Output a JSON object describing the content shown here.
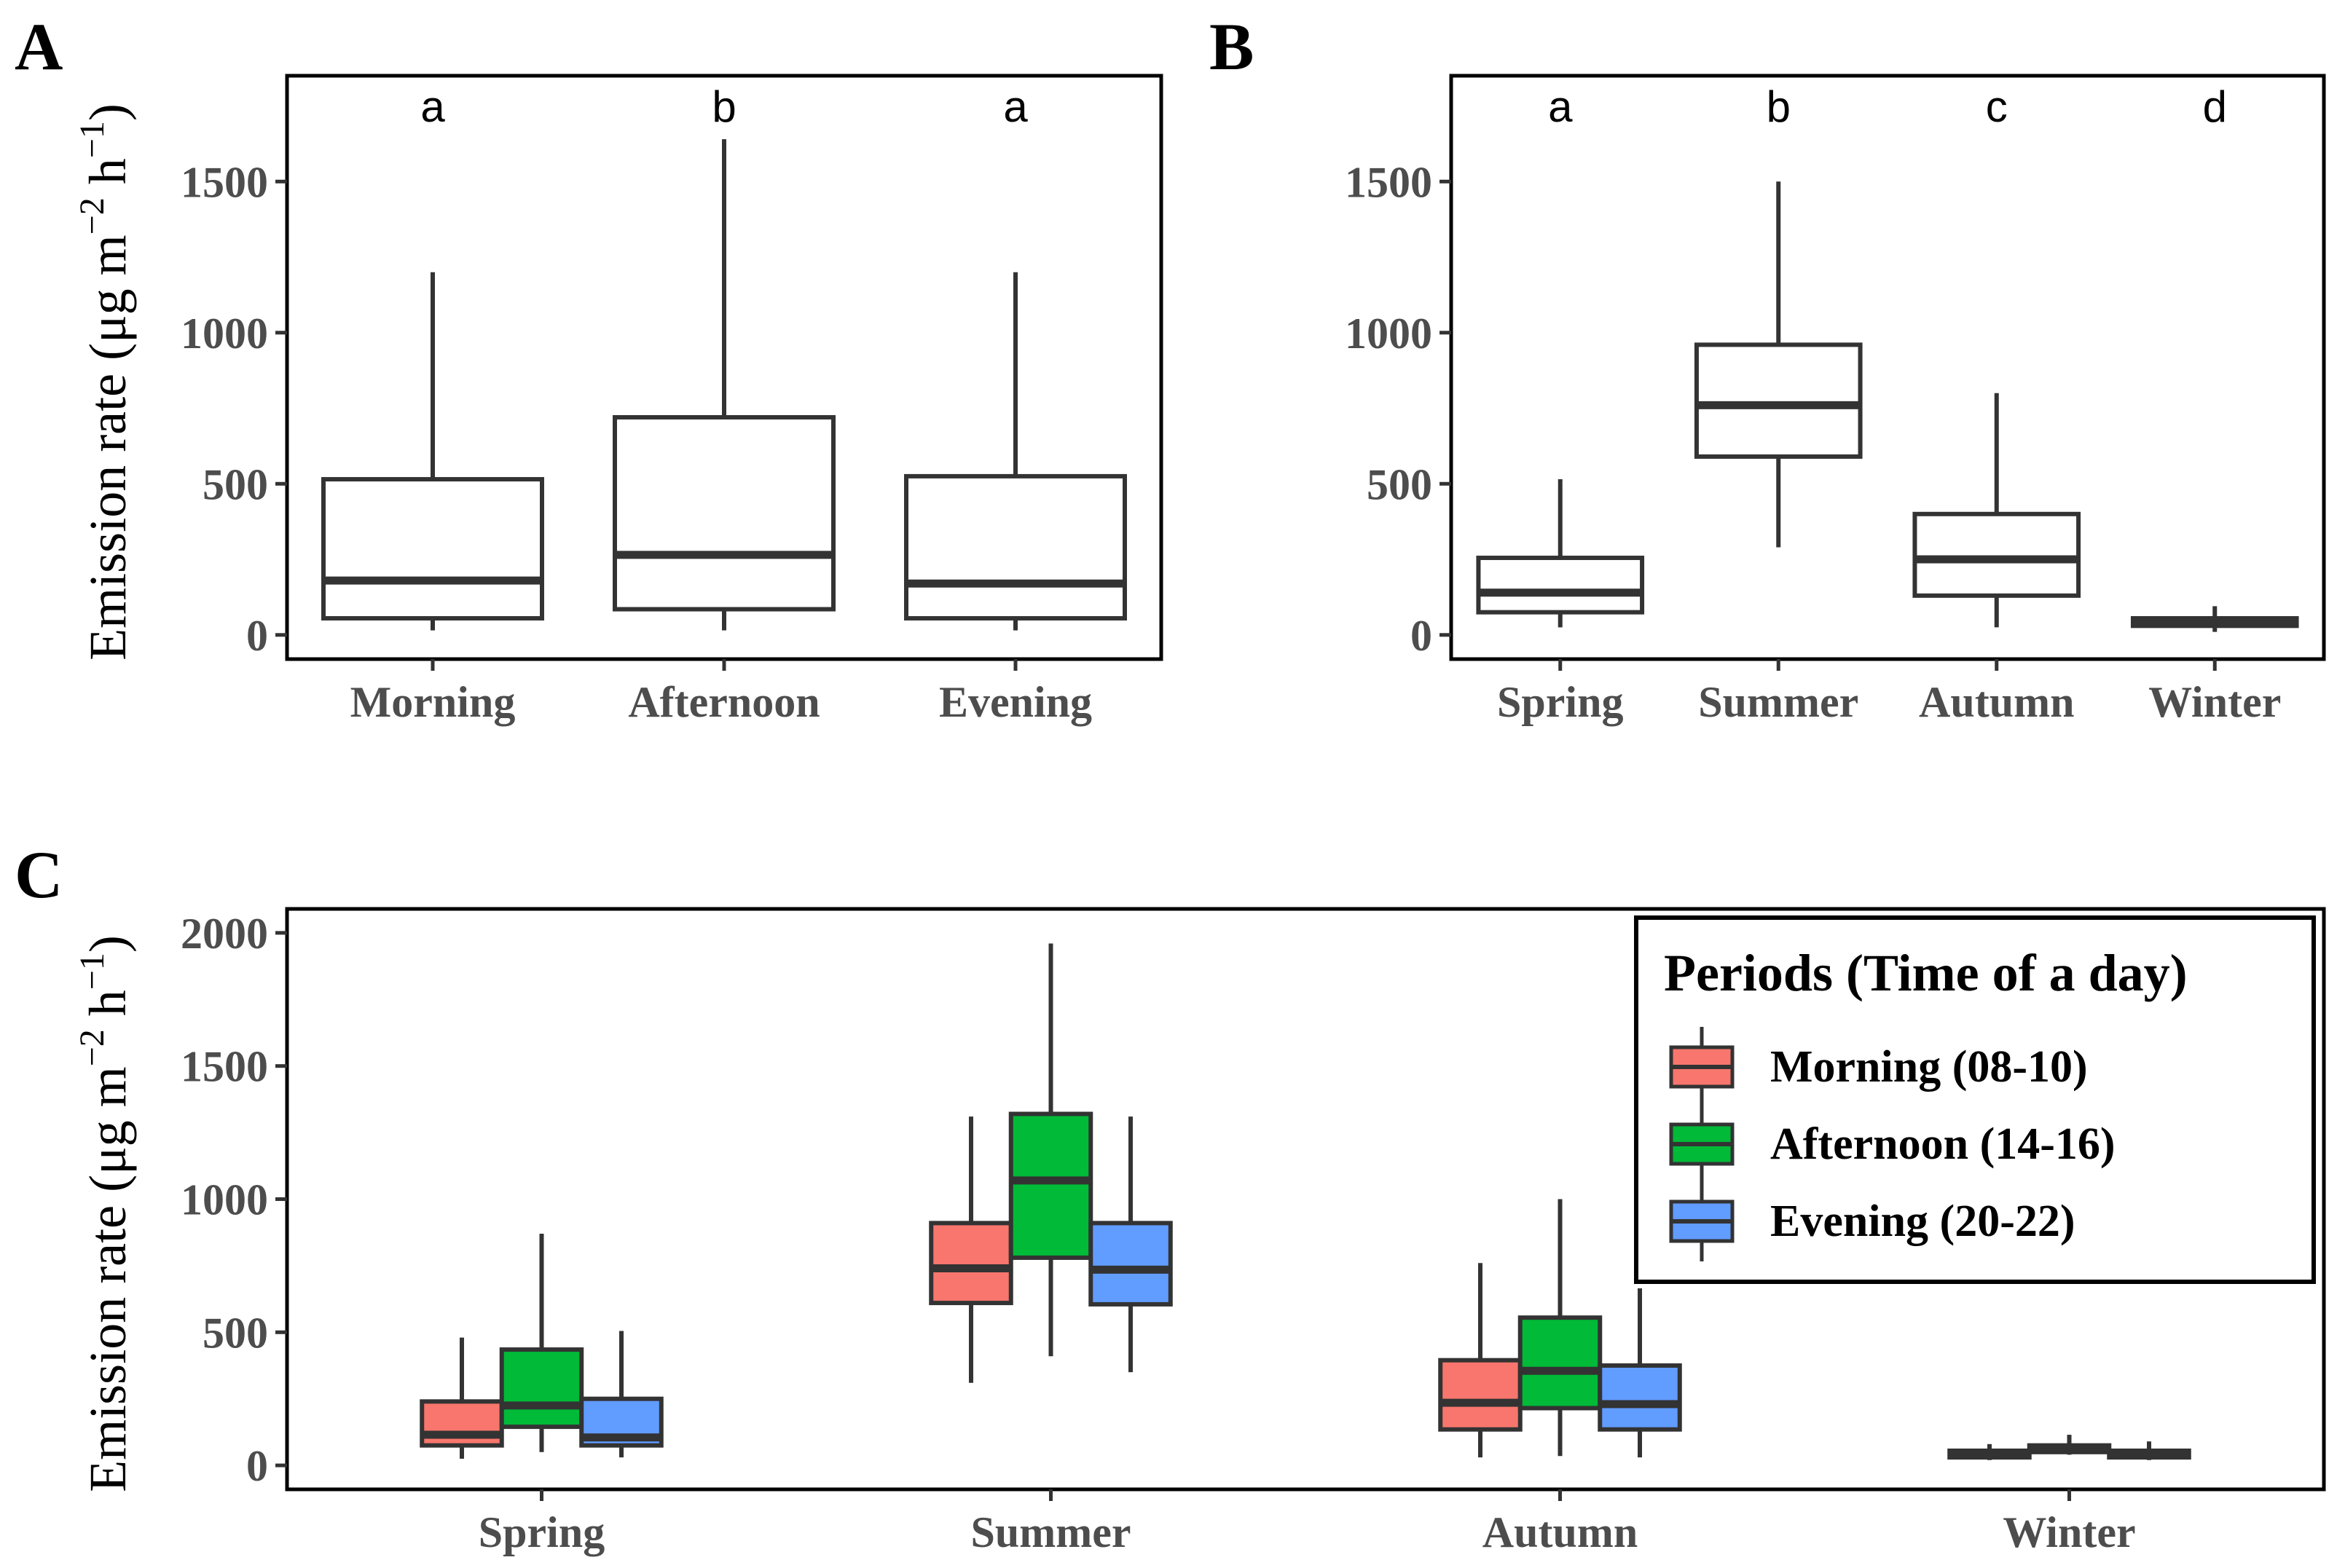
{
  "chart_data": [
    {
      "panel": "A",
      "type": "box",
      "ylabel_main": "Emission rate (μg m",
      "ylabel_sup1": "−2",
      "ylabel_mid": " h",
      "ylabel_sup2": "−1",
      "ylabel_end": ")",
      "ylim": [
        -80,
        1850
      ],
      "yticks": [
        0,
        500,
        1000,
        1500
      ],
      "categories": [
        "Morning",
        "Afternoon",
        "Evening"
      ],
      "significance": [
        "a",
        "b",
        "a"
      ],
      "boxes": [
        {
          "whisker_low": 15,
          "q1": 55,
          "median": 180,
          "q3": 515,
          "whisker_high": 1200,
          "fill": "#ffffff"
        },
        {
          "whisker_low": 15,
          "q1": 85,
          "median": 265,
          "q3": 720,
          "whisker_high": 1640,
          "fill": "#ffffff"
        },
        {
          "whisker_low": 15,
          "q1": 55,
          "median": 170,
          "q3": 525,
          "whisker_high": 1200,
          "fill": "#ffffff"
        }
      ]
    },
    {
      "panel": "B",
      "type": "box",
      "ylim": [
        -80,
        1850
      ],
      "yticks": [
        0,
        500,
        1000,
        1500
      ],
      "categories": [
        "Spring",
        "Summer",
        "Autumn",
        "Winter"
      ],
      "significance": [
        "a",
        "b",
        "c",
        "d"
      ],
      "boxes": [
        {
          "whisker_low": 25,
          "q1": 75,
          "median": 140,
          "q3": 255,
          "whisker_high": 515,
          "fill": "#ffffff"
        },
        {
          "whisker_low": 290,
          "q1": 590,
          "median": 760,
          "q3": 960,
          "whisker_high": 1500,
          "fill": "#ffffff"
        },
        {
          "whisker_low": 25,
          "q1": 130,
          "median": 250,
          "q3": 400,
          "whisker_high": 800,
          "fill": "#ffffff"
        },
        {
          "whisker_low": 10,
          "q1": 30,
          "median": 45,
          "q3": 55,
          "whisker_high": 95,
          "fill": "#ffffff"
        }
      ]
    },
    {
      "panel": "C",
      "type": "grouped-box",
      "ylabel_main": "Emission rate (μg m",
      "ylabel_sup1": "−2",
      "ylabel_mid": " h",
      "ylabel_sup2": "−1",
      "ylabel_end": ")",
      "ylim": [
        -90,
        2090
      ],
      "yticks": [
        0,
        500,
        1000,
        1500,
        2000
      ],
      "categories": [
        "Spring",
        "Summer",
        "Autumn",
        "Winter"
      ],
      "legend": {
        "title": "Periods (Time of a day)",
        "placement": "top-right",
        "entries": [
          {
            "label": "Morning (08-10)",
            "color": "#f8766d"
          },
          {
            "label": "Afternoon (14-16)",
            "color": "#00ba38"
          },
          {
            "label": "Evening (20-22)",
            "color": "#619cff"
          }
        ]
      },
      "series": [
        {
          "key": "morning",
          "color": "#f8766d",
          "boxes": [
            {
              "whisker_low": 25,
              "q1": 75,
              "median": 115,
              "q3": 240,
              "whisker_high": 480
            },
            {
              "whisker_low": 310,
              "q1": 610,
              "median": 740,
              "q3": 910,
              "whisker_high": 1310
            },
            {
              "whisker_low": 30,
              "q1": 135,
              "median": 235,
              "q3": 395,
              "whisker_high": 760
            },
            {
              "whisker_low": 20,
              "q1": 30,
              "median": 40,
              "q3": 55,
              "whisker_high": 80
            }
          ]
        },
        {
          "key": "afternoon",
          "color": "#00ba38",
          "boxes": [
            {
              "whisker_low": 50,
              "q1": 145,
              "median": 225,
              "q3": 435,
              "whisker_high": 870
            },
            {
              "whisker_low": 410,
              "q1": 780,
              "median": 1070,
              "q3": 1320,
              "whisker_high": 1960
            },
            {
              "whisker_low": 35,
              "q1": 215,
              "median": 355,
              "q3": 555,
              "whisker_high": 1000
            },
            {
              "whisker_low": 40,
              "q1": 50,
              "median": 60,
              "q3": 75,
              "whisker_high": 115
            }
          ]
        },
        {
          "key": "evening",
          "color": "#619cff",
          "boxes": [
            {
              "whisker_low": 30,
              "q1": 75,
              "median": 105,
              "q3": 250,
              "whisker_high": 505
            },
            {
              "whisker_low": 350,
              "q1": 605,
              "median": 735,
              "q3": 910,
              "whisker_high": 1310
            },
            {
              "whisker_low": 30,
              "q1": 135,
              "median": 230,
              "q3": 375,
              "whisker_high": 665
            },
            {
              "whisker_low": 20,
              "q1": 30,
              "median": 45,
              "q3": 55,
              "whisker_high": 90
            }
          ]
        }
      ]
    }
  ]
}
